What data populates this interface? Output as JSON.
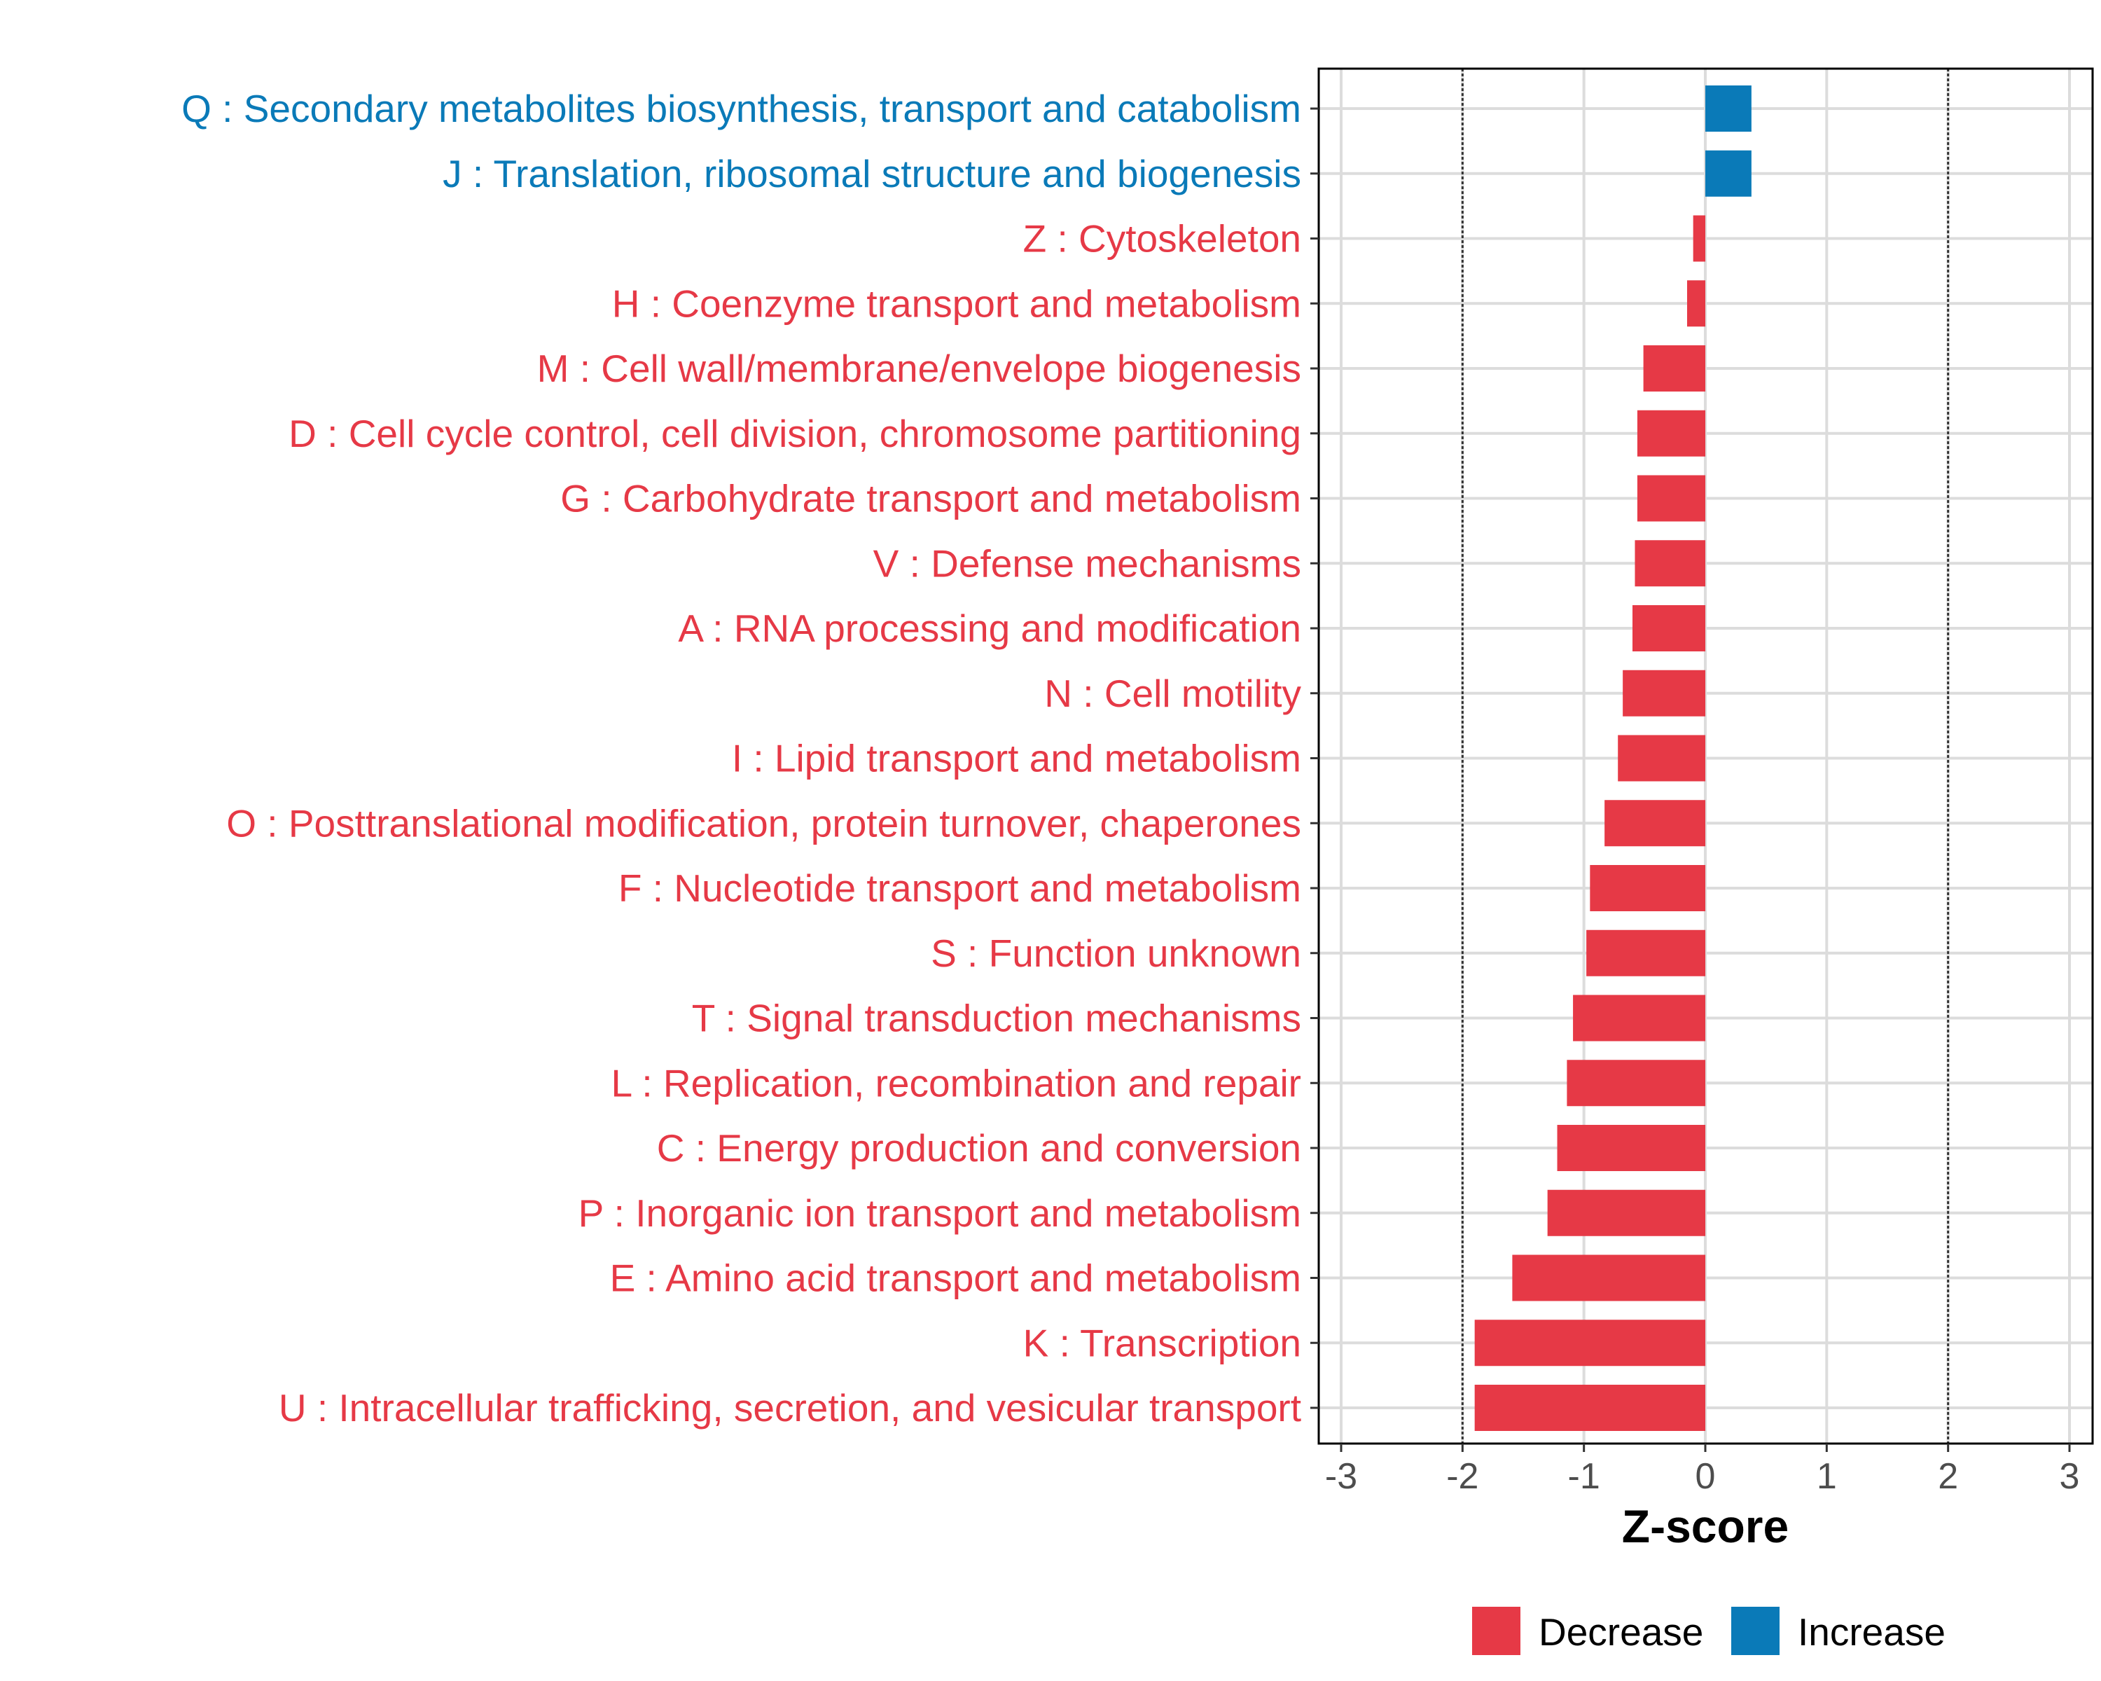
{
  "chart_data": {
    "type": "bar",
    "orientation": "horizontal",
    "title": "",
    "xlabel": "Z-score",
    "ylabel": "",
    "xlim": [
      -3,
      3
    ],
    "xticks": [
      "-3",
      "-2",
      "-1",
      "0",
      "1",
      "2",
      "3"
    ],
    "reference_lines": [
      -2,
      2
    ],
    "grid": true,
    "categories": [
      "Q : Secondary metabolites biosynthesis, transport and catabolism",
      "J : Translation, ribosomal structure and biogenesis",
      "Z : Cytoskeleton",
      "H : Coenzyme transport and metabolism",
      "M : Cell wall/membrane/envelope biogenesis",
      "D : Cell cycle control, cell division, chromosome partitioning",
      "G : Carbohydrate transport and metabolism",
      "V : Defense mechanisms",
      "A : RNA processing and modification",
      "N : Cell motility",
      "I : Lipid transport and metabolism",
      "O : Posttranslational modification, protein turnover, chaperones",
      "F : Nucleotide transport and metabolism",
      "S : Function unknown",
      "T : Signal transduction mechanisms",
      "L : Replication, recombination and repair",
      "C : Energy production and conversion",
      "P : Inorganic ion transport and metabolism",
      "E : Amino acid transport and metabolism",
      "K : Transcription",
      "U : Intracellular trafficking, secretion, and vesicular transport"
    ],
    "values": [
      0.38,
      0.38,
      -0.1,
      -0.15,
      -0.51,
      -0.56,
      -0.56,
      -0.58,
      -0.6,
      -0.68,
      -0.72,
      -0.83,
      -0.95,
      -0.98,
      -1.09,
      -1.14,
      -1.22,
      -1.3,
      -1.59,
      -1.9,
      -1.9
    ],
    "legend": {
      "position": "bottom",
      "items": [
        {
          "label": "Decrease",
          "color": "#E63946"
        },
        {
          "label": "Increase",
          "color": "#0A7AB8"
        }
      ]
    },
    "colors": {
      "decrease": "#E63946",
      "increase": "#0A7AB8"
    }
  }
}
